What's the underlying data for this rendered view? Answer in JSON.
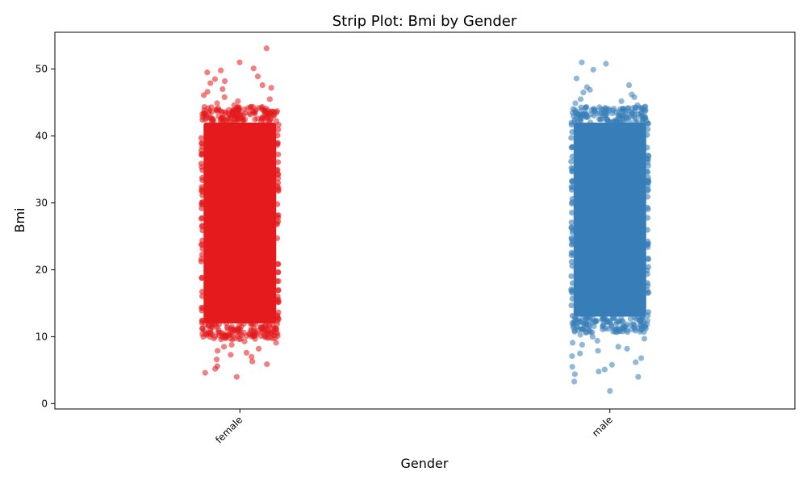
{
  "chart_data": {
    "type": "scatter",
    "title": "Strip Plot: Bmi by Gender",
    "xlabel": "Gender",
    "ylabel": "Bmi",
    "categories": [
      "female",
      "male"
    ],
    "ylim": [
      -0.8,
      55.5
    ],
    "yticks": [
      0,
      10,
      20,
      30,
      40,
      50
    ],
    "grid": false,
    "legend": "none",
    "series": [
      {
        "category": "female",
        "color": "#e41a1c",
        "dense_range": [
          12,
          42
        ],
        "points": [
          53.1,
          51.0,
          50.1,
          49.8,
          49.5,
          48.9,
          48.5,
          48.2,
          47.9,
          47.6,
          47.2,
          47.0,
          46.6,
          46.1,
          45.8,
          45.5,
          45.2,
          44.9,
          44.6,
          44.3,
          44.1,
          43.8,
          43.6,
          43.3,
          43.1,
          42.8,
          42.5,
          42.3,
          10.8,
          10.5,
          10.2,
          9.9,
          9.6,
          9.3,
          9.1,
          8.8,
          8.5,
          8.2,
          7.9,
          7.6,
          7.3,
          7.0,
          6.6,
          6.3,
          5.9,
          5.6,
          5.2,
          4.6,
          4.0
        ]
      },
      {
        "category": "male",
        "color": "#377eb8",
        "dense_range": [
          13,
          42
        ],
        "points": [
          51.0,
          50.8,
          49.9,
          48.6,
          47.6,
          47.3,
          46.9,
          46.5,
          46.2,
          45.8,
          45.5,
          45.2,
          44.9,
          44.6,
          44.3,
          44.0,
          43.7,
          43.4,
          43.1,
          42.8,
          42.5,
          11.2,
          10.9,
          10.6,
          10.3,
          10.0,
          9.7,
          9.4,
          9.1,
          8.8,
          8.5,
          8.2,
          7.9,
          7.5,
          7.1,
          6.8,
          6.2,
          5.8,
          5.5,
          5.1,
          4.8,
          4.4,
          4.0,
          3.3,
          1.9
        ]
      }
    ]
  }
}
